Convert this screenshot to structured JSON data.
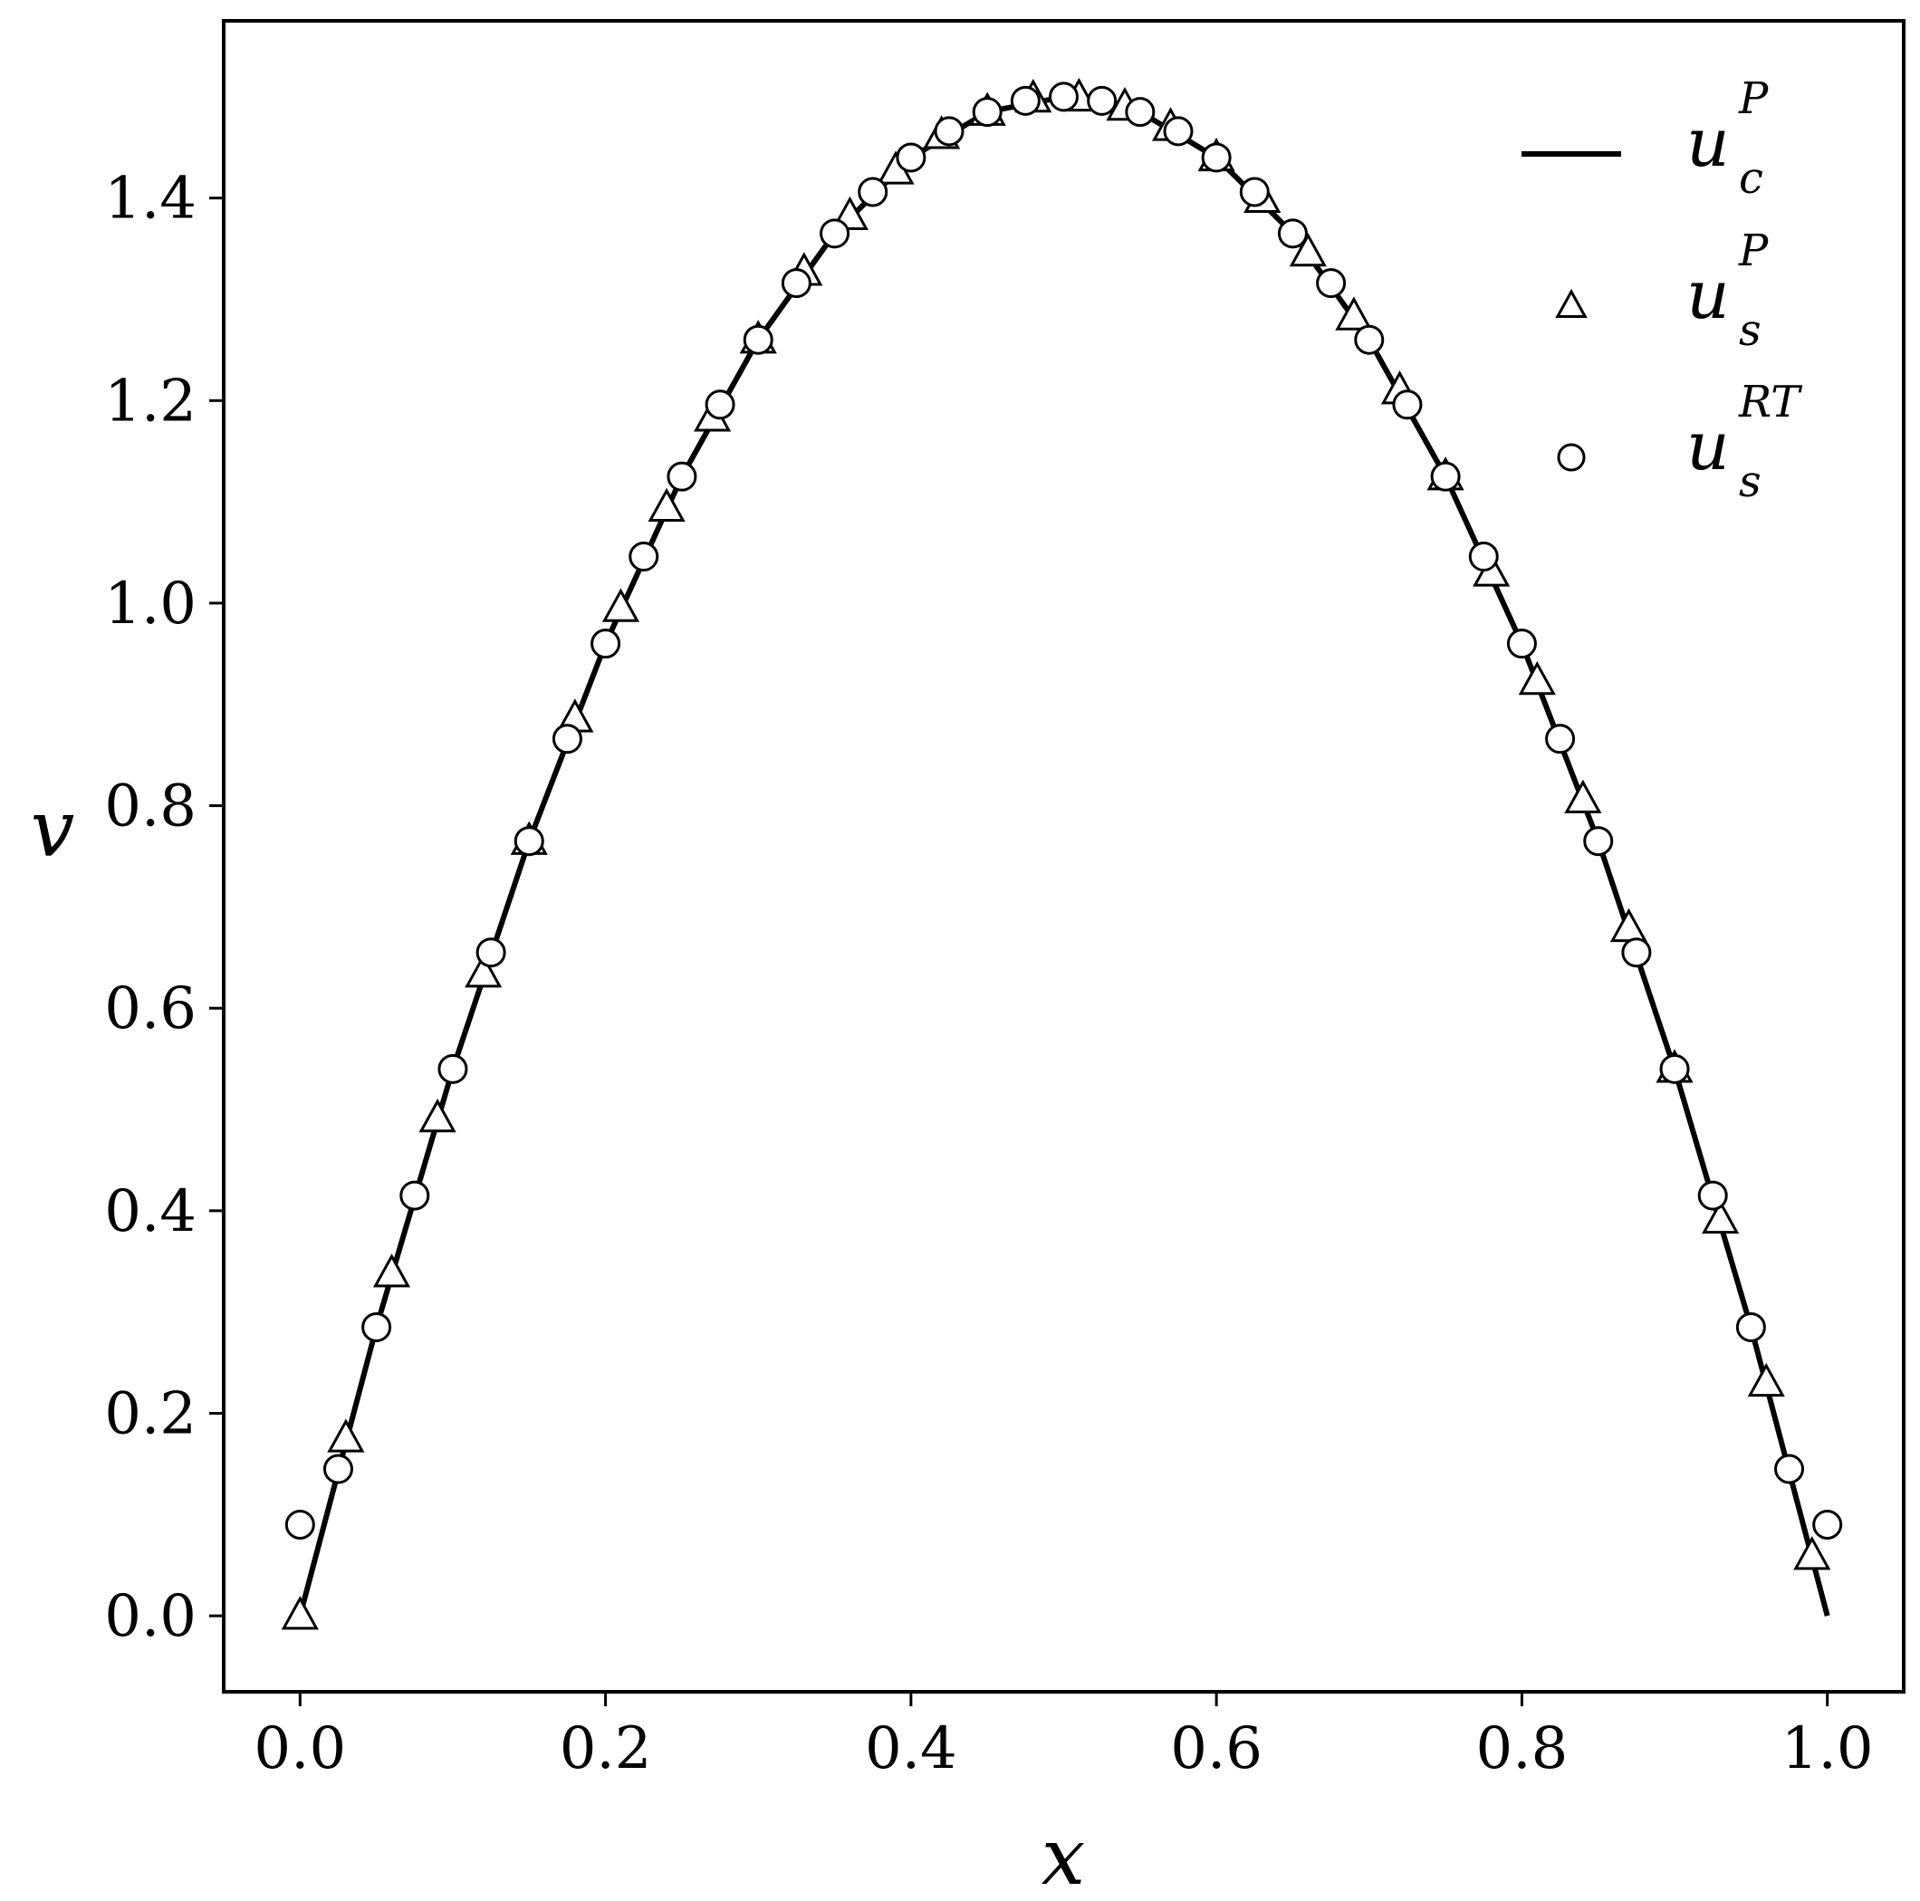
{
  "chart_data": {
    "type": "line",
    "xlabel": "x",
    "ylabel": "v",
    "xlim": [
      -0.05,
      1.05
    ],
    "ylim": [
      -0.075,
      1.575
    ],
    "xticks": [
      "0.0",
      "0.2",
      "0.4",
      "0.6",
      "0.8",
      "1.0"
    ],
    "yticks": [
      "0.0",
      "0.2",
      "0.4",
      "0.6",
      "0.8",
      "1.0",
      "1.2",
      "1.4"
    ],
    "grid": false,
    "legend_position": "top-right",
    "series": [
      {
        "name": "u_c^P",
        "legend_base": "u",
        "legend_sub": "c",
        "legend_sup": "P",
        "style": "line",
        "color": "#000000",
        "x": [
          0.0,
          0.05,
          0.1,
          0.15,
          0.2,
          0.25,
          0.3,
          0.35,
          0.4,
          0.45,
          0.5,
          0.55,
          0.6,
          0.65,
          0.7,
          0.75,
          0.8,
          0.85,
          0.9,
          0.95,
          1.0
        ],
        "y": [
          0.0,
          0.285,
          0.54,
          0.765,
          0.96,
          1.125,
          1.26,
          1.365,
          1.44,
          1.485,
          1.5,
          1.485,
          1.44,
          1.365,
          1.26,
          1.125,
          0.96,
          0.765,
          0.54,
          0.285,
          0.0
        ]
      },
      {
        "name": "u_s^P",
        "legend_base": "u",
        "legend_sub": "s",
        "legend_sup": "P",
        "style": "triangle",
        "color": "#000000",
        "x": [
          0.0,
          0.03,
          0.06,
          0.09,
          0.12,
          0.15,
          0.18,
          0.21,
          0.24,
          0.27,
          0.3,
          0.33,
          0.36,
          0.39,
          0.42,
          0.45,
          0.48,
          0.51,
          0.54,
          0.57,
          0.6,
          0.63,
          0.66,
          0.69,
          0.72,
          0.75,
          0.78,
          0.81,
          0.84,
          0.87,
          0.9,
          0.93,
          0.96,
          0.99
        ],
        "y": [
          0.0,
          0.175,
          0.338,
          0.491,
          0.634,
          0.765,
          0.886,
          0.995,
          1.094,
          1.183,
          1.26,
          1.327,
          1.382,
          1.427,
          1.462,
          1.485,
          1.498,
          1.499,
          1.49,
          1.47,
          1.44,
          1.399,
          1.346,
          1.283,
          1.21,
          1.125,
          1.03,
          0.923,
          0.806,
          0.679,
          0.54,
          0.391,
          0.23,
          0.059
        ]
      },
      {
        "name": "u_s^RT",
        "legend_base": "u",
        "legend_sub": "s",
        "legend_sup": "RT",
        "style": "circle",
        "color": "#000000",
        "x": [
          0.0,
          0.025,
          0.05,
          0.075,
          0.1,
          0.125,
          0.15,
          0.175,
          0.2,
          0.225,
          0.25,
          0.275,
          0.3,
          0.325,
          0.35,
          0.375,
          0.4,
          0.425,
          0.45,
          0.475,
          0.5,
          0.525,
          0.55,
          0.575,
          0.6,
          0.625,
          0.65,
          0.675,
          0.7,
          0.725,
          0.75,
          0.775,
          0.8,
          0.825,
          0.85,
          0.875,
          0.9,
          0.925,
          0.95,
          0.975,
          1.0
        ],
        "y": [
          0.09,
          0.145,
          0.285,
          0.415,
          0.54,
          0.655,
          0.765,
          0.866,
          0.96,
          1.046,
          1.125,
          1.196,
          1.26,
          1.316,
          1.365,
          1.406,
          1.44,
          1.466,
          1.485,
          1.496,
          1.5,
          1.496,
          1.485,
          1.466,
          1.44,
          1.406,
          1.365,
          1.316,
          1.26,
          1.196,
          1.125,
          1.046,
          0.96,
          0.866,
          0.765,
          0.655,
          0.54,
          0.415,
          0.285,
          0.145,
          0.09
        ]
      }
    ]
  }
}
